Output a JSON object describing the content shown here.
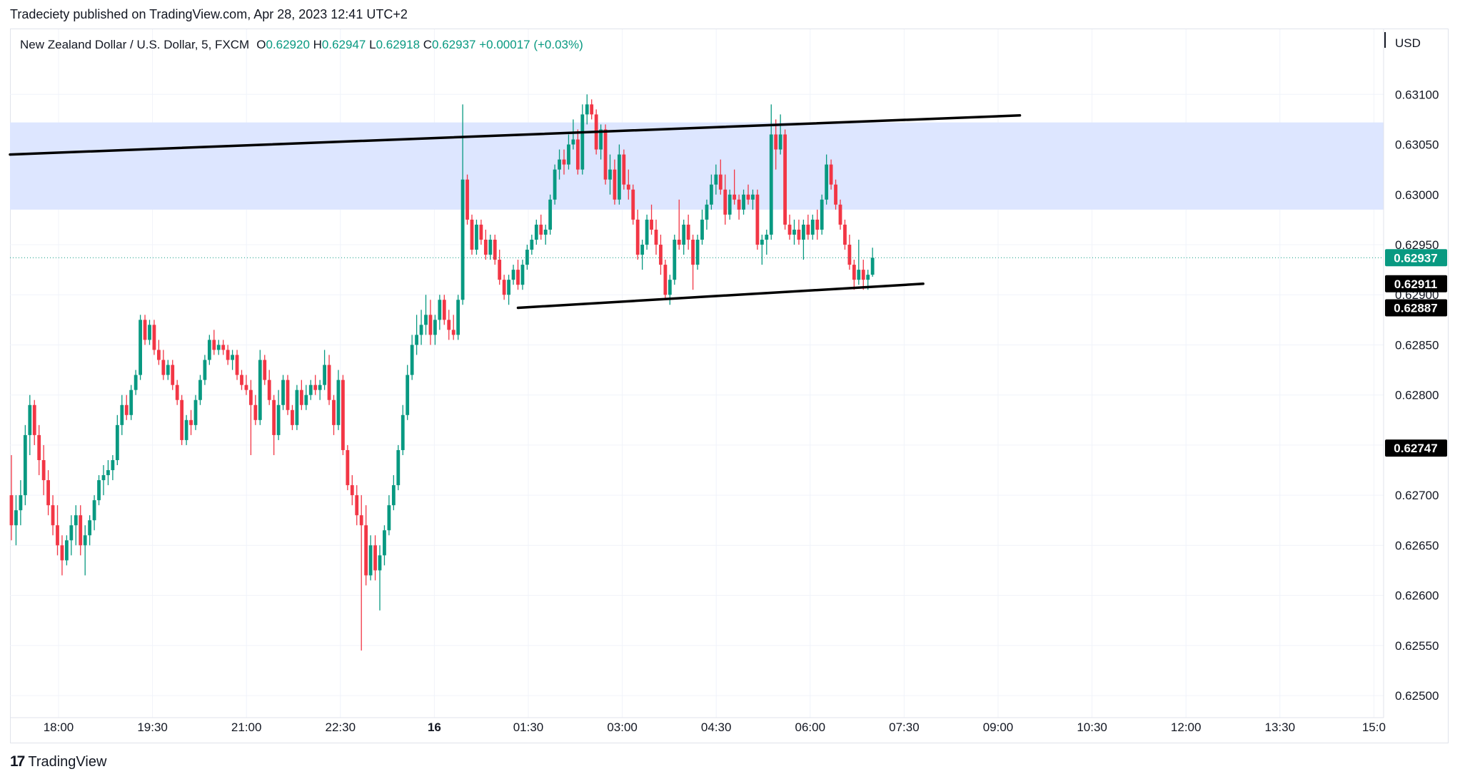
{
  "header": {
    "published_by": "Tradeciety published on TradingView.com, Apr 28, 2023 12:41 UTC+2"
  },
  "legend": {
    "symbol": "New Zealand Dollar / U.S. Dollar, 5, FXCM",
    "o_label": "O",
    "o_value": "0.62920",
    "h_label": "H",
    "h_value": "0.62947",
    "l_label": "L",
    "l_value": "0.62918",
    "c_label": "C",
    "c_value": "0.62937",
    "change": "+0.00017 (+0.03%)"
  },
  "footer": {
    "brand": "TradingView",
    "logo_glyph": "17"
  },
  "colors": {
    "up": "#089981",
    "down": "#f23645",
    "zone": "#dde6ff",
    "line": "#000000",
    "last_price": "#089981",
    "grid": "#f0f3fa"
  },
  "chart_data": {
    "type": "candlestick",
    "currency": "USD",
    "y_ticks": [
      "0.63100",
      "0.63050",
      "0.63000",
      "0.62950",
      "0.62900",
      "0.62850",
      "0.62800",
      "0.62750",
      "0.62700",
      "0.62650",
      "0.62600",
      "0.62550",
      "0.62500"
    ],
    "x_ticks": [
      "18:00",
      "19:30",
      "21:00",
      "22:30",
      "16",
      "01:30",
      "03:00",
      "04:30",
      "06:00",
      "07:30",
      "09:00",
      "10:30",
      "12:00",
      "13:30",
      "15:0"
    ],
    "ylim": [
      0.62478,
      0.63165
    ],
    "price_labels": [
      {
        "text": "0.62937",
        "value": 0.62937,
        "kind": "last"
      },
      {
        "text": "0.62911",
        "value": 0.62911,
        "kind": "marker"
      },
      {
        "text": "0.62887",
        "value": 0.62887,
        "kind": "marker"
      },
      {
        "text": "0.62747",
        "value": 0.62747,
        "kind": "marker"
      }
    ],
    "zone": {
      "low": 0.62985,
      "high": 0.63072
    },
    "trendlines": [
      {
        "from": [
          0,
          0.6304
        ],
        "to": [
          219,
          0.63079
        ]
      },
      {
        "from": [
          110,
          0.62887
        ],
        "to": [
          198,
          0.62911
        ]
      }
    ],
    "ohlc": [
      [
        0.627,
        0.6274,
        0.62655,
        0.6267
      ],
      [
        0.6267,
        0.627,
        0.6265,
        0.62685
      ],
      [
        0.62685,
        0.62715,
        0.6267,
        0.627
      ],
      [
        0.627,
        0.6277,
        0.6269,
        0.6276
      ],
      [
        0.6276,
        0.628,
        0.6274,
        0.6279
      ],
      [
        0.6279,
        0.62795,
        0.6275,
        0.6276
      ],
      [
        0.6276,
        0.6277,
        0.6272,
        0.62735
      ],
      [
        0.62735,
        0.6275,
        0.627,
        0.62715
      ],
      [
        0.62715,
        0.62725,
        0.6268,
        0.6269
      ],
      [
        0.6269,
        0.627,
        0.6266,
        0.6267
      ],
      [
        0.6267,
        0.6269,
        0.6264,
        0.6265
      ],
      [
        0.6265,
        0.6266,
        0.6262,
        0.62635
      ],
      [
        0.62635,
        0.6266,
        0.6263,
        0.62655
      ],
      [
        0.62655,
        0.6268,
        0.6264,
        0.6267
      ],
      [
        0.6267,
        0.6269,
        0.6265,
        0.6268
      ],
      [
        0.6268,
        0.6269,
        0.6264,
        0.6265
      ],
      [
        0.6265,
        0.6267,
        0.6262,
        0.6266
      ],
      [
        0.6266,
        0.6268,
        0.6265,
        0.62675
      ],
      [
        0.62675,
        0.627,
        0.62665,
        0.62695
      ],
      [
        0.62695,
        0.6272,
        0.6269,
        0.62715
      ],
      [
        0.62715,
        0.6273,
        0.627,
        0.6272
      ],
      [
        0.6272,
        0.62735,
        0.6271,
        0.62725
      ],
      [
        0.62725,
        0.6274,
        0.62715,
        0.62735
      ],
      [
        0.62735,
        0.6278,
        0.6273,
        0.6277
      ],
      [
        0.6277,
        0.628,
        0.6276,
        0.6279
      ],
      [
        0.6279,
        0.628,
        0.62775,
        0.6278
      ],
      [
        0.6278,
        0.6281,
        0.62775,
        0.62805
      ],
      [
        0.62805,
        0.62825,
        0.628,
        0.6282
      ],
      [
        0.6282,
        0.6288,
        0.62815,
        0.62875
      ],
      [
        0.62875,
        0.6288,
        0.6285,
        0.62855
      ],
      [
        0.62855,
        0.62875,
        0.6285,
        0.6287
      ],
      [
        0.6287,
        0.62875,
        0.6284,
        0.62845
      ],
      [
        0.62845,
        0.62855,
        0.6283,
        0.62835
      ],
      [
        0.62835,
        0.62845,
        0.62815,
        0.6282
      ],
      [
        0.6282,
        0.62835,
        0.62815,
        0.6283
      ],
      [
        0.6283,
        0.62835,
        0.62805,
        0.6281
      ],
      [
        0.6281,
        0.62815,
        0.6279,
        0.62795
      ],
      [
        0.62795,
        0.628,
        0.6275,
        0.62755
      ],
      [
        0.62755,
        0.6278,
        0.6275,
        0.62775
      ],
      [
        0.62775,
        0.62785,
        0.6276,
        0.6277
      ],
      [
        0.6277,
        0.628,
        0.62765,
        0.62795
      ],
      [
        0.62795,
        0.6282,
        0.6279,
        0.62815
      ],
      [
        0.62815,
        0.6284,
        0.6281,
        0.62835
      ],
      [
        0.62835,
        0.6286,
        0.6283,
        0.62855
      ],
      [
        0.62855,
        0.62865,
        0.6284,
        0.62845
      ],
      [
        0.62845,
        0.62855,
        0.6284,
        0.6285
      ],
      [
        0.6285,
        0.62855,
        0.6284,
        0.62845
      ],
      [
        0.62845,
        0.6285,
        0.6283,
        0.62835
      ],
      [
        0.62835,
        0.62845,
        0.62825,
        0.6284
      ],
      [
        0.6284,
        0.62845,
        0.62815,
        0.6282
      ],
      [
        0.6282,
        0.62825,
        0.62805,
        0.6281
      ],
      [
        0.6281,
        0.6282,
        0.628,
        0.62805
      ],
      [
        0.62805,
        0.62815,
        0.6274,
        0.6279
      ],
      [
        0.6279,
        0.628,
        0.6277,
        0.62775
      ],
      [
        0.62775,
        0.62845,
        0.6277,
        0.62835
      ],
      [
        0.62835,
        0.6284,
        0.6281,
        0.62815
      ],
      [
        0.62815,
        0.62825,
        0.6279,
        0.62795
      ],
      [
        0.62795,
        0.628,
        0.6274,
        0.6276
      ],
      [
        0.6276,
        0.62805,
        0.62755,
        0.6279
      ],
      [
        0.6279,
        0.6282,
        0.62785,
        0.62815
      ],
      [
        0.62815,
        0.6282,
        0.6278,
        0.62785
      ],
      [
        0.62785,
        0.6279,
        0.62765,
        0.6277
      ],
      [
        0.6277,
        0.6281,
        0.62765,
        0.62805
      ],
      [
        0.62805,
        0.62815,
        0.62785,
        0.6279
      ],
      [
        0.6279,
        0.6281,
        0.62785,
        0.628
      ],
      [
        0.628,
        0.62815,
        0.62795,
        0.6281
      ],
      [
        0.6281,
        0.6282,
        0.628,
        0.62805
      ],
      [
        0.62805,
        0.62815,
        0.62795,
        0.6281
      ],
      [
        0.6281,
        0.62845,
        0.62805,
        0.6283
      ],
      [
        0.6283,
        0.6284,
        0.6279,
        0.62795
      ],
      [
        0.62795,
        0.628,
        0.6276,
        0.6277
      ],
      [
        0.6277,
        0.62825,
        0.62765,
        0.62815
      ],
      [
        0.62815,
        0.6282,
        0.6274,
        0.62745
      ],
      [
        0.62745,
        0.6275,
        0.62705,
        0.6271
      ],
      [
        0.6271,
        0.6272,
        0.6269,
        0.627
      ],
      [
        0.627,
        0.6271,
        0.6267,
        0.6268
      ],
      [
        0.6268,
        0.627,
        0.62545,
        0.6267
      ],
      [
        0.6267,
        0.6269,
        0.6261,
        0.6262
      ],
      [
        0.6262,
        0.6266,
        0.62615,
        0.6265
      ],
      [
        0.6265,
        0.6266,
        0.62615,
        0.62625
      ],
      [
        0.62625,
        0.6265,
        0.62585,
        0.6264
      ],
      [
        0.6264,
        0.6267,
        0.6263,
        0.62665
      ],
      [
        0.62665,
        0.627,
        0.6266,
        0.6269
      ],
      [
        0.6269,
        0.6272,
        0.62685,
        0.6271
      ],
      [
        0.6271,
        0.6275,
        0.62705,
        0.62745
      ],
      [
        0.62745,
        0.6279,
        0.6274,
        0.6278
      ],
      [
        0.6278,
        0.6283,
        0.62775,
        0.6282
      ],
      [
        0.6282,
        0.6286,
        0.62815,
        0.6285
      ],
      [
        0.6285,
        0.6288,
        0.6284,
        0.6286
      ],
      [
        0.6286,
        0.62885,
        0.6285,
        0.6287
      ],
      [
        0.6287,
        0.629,
        0.6286,
        0.6288
      ],
      [
        0.6288,
        0.62895,
        0.6285,
        0.6286
      ],
      [
        0.6286,
        0.6288,
        0.6285,
        0.62875
      ],
      [
        0.62875,
        0.629,
        0.62865,
        0.62895
      ],
      [
        0.62895,
        0.629,
        0.6287,
        0.62875
      ],
      [
        0.62875,
        0.62885,
        0.62855,
        0.62865
      ],
      [
        0.62865,
        0.6288,
        0.62855,
        0.6286
      ],
      [
        0.6286,
        0.629,
        0.62855,
        0.62895
      ],
      [
        0.62895,
        0.6309,
        0.6289,
        0.63015
      ],
      [
        0.63015,
        0.6302,
        0.6297,
        0.62975
      ],
      [
        0.62975,
        0.6298,
        0.6294,
        0.62945
      ],
      [
        0.62945,
        0.62975,
        0.6294,
        0.6297
      ],
      [
        0.6297,
        0.62975,
        0.6295,
        0.62955
      ],
      [
        0.62955,
        0.62965,
        0.62935,
        0.6294
      ],
      [
        0.6294,
        0.6296,
        0.62935,
        0.62955
      ],
      [
        0.62955,
        0.6296,
        0.6293,
        0.62935
      ],
      [
        0.62935,
        0.62945,
        0.6291,
        0.62915
      ],
      [
        0.62915,
        0.6292,
        0.62895,
        0.629
      ],
      [
        0.629,
        0.6292,
        0.6289,
        0.62915
      ],
      [
        0.62915,
        0.6293,
        0.6291,
        0.62925
      ],
      [
        0.62925,
        0.62935,
        0.62905,
        0.6291
      ],
      [
        0.6291,
        0.62935,
        0.62905,
        0.6293
      ],
      [
        0.6293,
        0.6295,
        0.62925,
        0.62945
      ],
      [
        0.62945,
        0.6296,
        0.6294,
        0.62955
      ],
      [
        0.62955,
        0.62975,
        0.6295,
        0.6297
      ],
      [
        0.6297,
        0.6298,
        0.62955,
        0.6296
      ],
      [
        0.6296,
        0.6297,
        0.6295,
        0.62965
      ],
      [
        0.62965,
        0.63,
        0.6296,
        0.62995
      ],
      [
        0.62995,
        0.6303,
        0.6299,
        0.63025
      ],
      [
        0.63025,
        0.63045,
        0.63015,
        0.63035
      ],
      [
        0.63035,
        0.63045,
        0.6302,
        0.6303
      ],
      [
        0.6303,
        0.6306,
        0.63025,
        0.6305
      ],
      [
        0.6305,
        0.63075,
        0.63045,
        0.63055
      ],
      [
        0.63055,
        0.63065,
        0.6302,
        0.63025
      ],
      [
        0.63025,
        0.6309,
        0.6302,
        0.6308
      ],
      [
        0.6308,
        0.631,
        0.6307,
        0.6309
      ],
      [
        0.6309,
        0.63095,
        0.63075,
        0.6308
      ],
      [
        0.6308,
        0.63085,
        0.6304,
        0.63045
      ],
      [
        0.63045,
        0.6307,
        0.63035,
        0.63065
      ],
      [
        0.63065,
        0.6307,
        0.6301,
        0.63015
      ],
      [
        0.63015,
        0.6304,
        0.63,
        0.63025
      ],
      [
        0.63025,
        0.63035,
        0.6299,
        0.62995
      ],
      [
        0.62995,
        0.6305,
        0.6299,
        0.6304
      ],
      [
        0.6304,
        0.63045,
        0.63005,
        0.6301
      ],
      [
        0.6301,
        0.63025,
        0.62995,
        0.63005
      ],
      [
        0.63005,
        0.6301,
        0.6297,
        0.62975
      ],
      [
        0.62975,
        0.62985,
        0.62935,
        0.6294
      ],
      [
        0.6294,
        0.62955,
        0.62925,
        0.6295
      ],
      [
        0.6295,
        0.6298,
        0.62945,
        0.62975
      ],
      [
        0.62975,
        0.6299,
        0.6296,
        0.62965
      ],
      [
        0.62965,
        0.62975,
        0.6294,
        0.6295
      ],
      [
        0.6295,
        0.6296,
        0.6292,
        0.6293
      ],
      [
        0.6293,
        0.62935,
        0.62895,
        0.629
      ],
      [
        0.629,
        0.6292,
        0.6289,
        0.62915
      ],
      [
        0.62915,
        0.6296,
        0.6291,
        0.62955
      ],
      [
        0.62955,
        0.62995,
        0.62945,
        0.6295
      ],
      [
        0.6295,
        0.62975,
        0.6294,
        0.6297
      ],
      [
        0.6297,
        0.6298,
        0.62945,
        0.62955
      ],
      [
        0.62955,
        0.6296,
        0.62905,
        0.6293
      ],
      [
        0.6293,
        0.6296,
        0.62925,
        0.62955
      ],
      [
        0.62955,
        0.62985,
        0.6295,
        0.62975
      ],
      [
        0.62975,
        0.62995,
        0.62965,
        0.6299
      ],
      [
        0.6299,
        0.6302,
        0.62985,
        0.6301
      ],
      [
        0.6301,
        0.6303,
        0.63,
        0.6302
      ],
      [
        0.6302,
        0.63035,
        0.63,
        0.63005
      ],
      [
        0.63005,
        0.6302,
        0.6297,
        0.6298
      ],
      [
        0.6298,
        0.63005,
        0.62975,
        0.63
      ],
      [
        0.63,
        0.63025,
        0.6299,
        0.62995
      ],
      [
        0.62995,
        0.63,
        0.62975,
        0.62985
      ],
      [
        0.62985,
        0.63005,
        0.6298,
        0.63
      ],
      [
        0.63,
        0.6301,
        0.6299,
        0.62995
      ],
      [
        0.62995,
        0.63005,
        0.62985,
        0.63
      ],
      [
        0.63,
        0.63005,
        0.62945,
        0.6295
      ],
      [
        0.6295,
        0.6296,
        0.6293,
        0.62955
      ],
      [
        0.62955,
        0.62965,
        0.6294,
        0.6296
      ],
      [
        0.6296,
        0.6309,
        0.62955,
        0.6306
      ],
      [
        0.6306,
        0.63075,
        0.63025,
        0.63045
      ],
      [
        0.63045,
        0.6308,
        0.6304,
        0.6306
      ],
      [
        0.6306,
        0.63065,
        0.62965,
        0.6297
      ],
      [
        0.6297,
        0.6298,
        0.62955,
        0.6296
      ],
      [
        0.6296,
        0.62975,
        0.6295,
        0.62965
      ],
      [
        0.62965,
        0.62975,
        0.6295,
        0.62955
      ],
      [
        0.62955,
        0.62975,
        0.62935,
        0.6297
      ],
      [
        0.6297,
        0.6298,
        0.62955,
        0.6296
      ],
      [
        0.6296,
        0.6298,
        0.62955,
        0.62975
      ],
      [
        0.62975,
        0.62985,
        0.62955,
        0.62965
      ],
      [
        0.62965,
        0.63,
        0.6296,
        0.62995
      ],
      [
        0.62995,
        0.6304,
        0.6299,
        0.6303
      ],
      [
        0.6303,
        0.63035,
        0.63005,
        0.6301
      ],
      [
        0.6301,
        0.63015,
        0.62985,
        0.6299
      ],
      [
        0.6299,
        0.62995,
        0.62965,
        0.6297
      ],
      [
        0.6297,
        0.62975,
        0.62945,
        0.6295
      ],
      [
        0.6295,
        0.6296,
        0.62925,
        0.6293
      ],
      [
        0.6293,
        0.62935,
        0.62905,
        0.62915
      ],
      [
        0.62915,
        0.62955,
        0.6291,
        0.62925
      ],
      [
        0.62925,
        0.62935,
        0.62905,
        0.62915
      ],
      [
        0.62915,
        0.62925,
        0.62905,
        0.6292
      ],
      [
        0.6292,
        0.62947,
        0.62918,
        0.62937
      ]
    ]
  }
}
